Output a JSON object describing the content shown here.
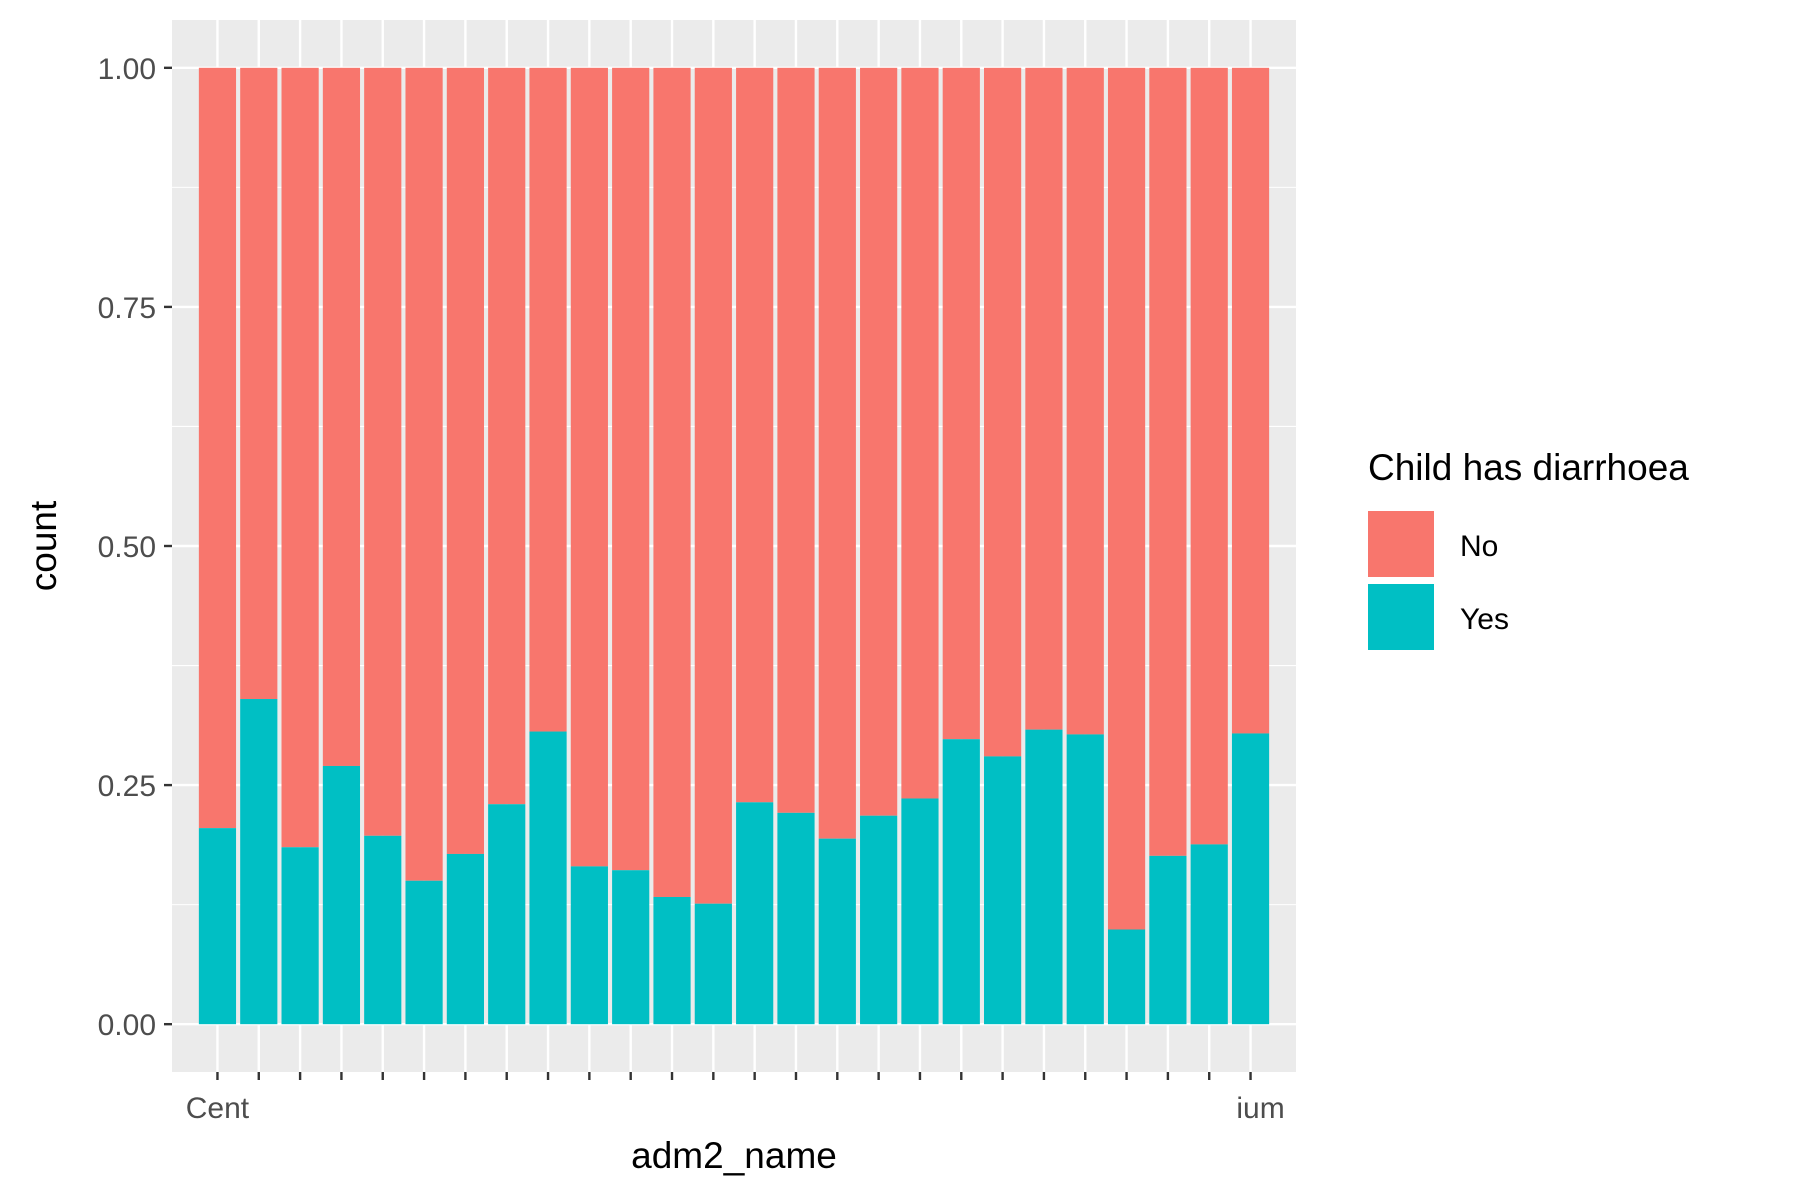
{
  "chart_data": {
    "type": "bar",
    "stacked": true,
    "position": "fill",
    "xlabel": "adm2_name",
    "ylabel": "count",
    "ylim": [
      0,
      1
    ],
    "y_ticks": [
      "0.00",
      "0.25",
      "0.50",
      "0.75",
      "1.00"
    ],
    "y_tick_values": [
      0,
      0.25,
      0.5,
      0.75,
      1.0
    ],
    "grid": true,
    "x_tick_labels_printed": [
      "Cent",
      "ium"
    ],
    "categories": [
      "1",
      "2",
      "3",
      "4",
      "5",
      "6",
      "7",
      "8",
      "9",
      "10",
      "11",
      "12",
      "13",
      "14",
      "15",
      "16",
      "17",
      "18",
      "19",
      "20",
      "21",
      "22",
      "23",
      "24",
      "25",
      "26"
    ],
    "legend": {
      "title": "Child has diarrhoea",
      "position": "right",
      "entries": [
        {
          "label": "No",
          "color": "#F8766D"
        },
        {
          "label": "Yes",
          "color": "#00BFC4"
        }
      ]
    },
    "series": [
      {
        "name": "Yes",
        "color": "#00BFC4",
        "values": [
          0.205,
          0.34,
          0.185,
          0.27,
          0.197,
          0.15,
          0.178,
          0.23,
          0.306,
          0.165,
          0.161,
          0.133,
          0.126,
          0.232,
          0.221,
          0.194,
          0.218,
          0.236,
          0.298,
          0.28,
          0.308,
          0.303,
          0.099,
          0.176,
          0.188,
          0.304
        ]
      },
      {
        "name": "No",
        "color": "#F8766D",
        "values": [
          0.795,
          0.66,
          0.815,
          0.73,
          0.803,
          0.85,
          0.822,
          0.77,
          0.694,
          0.835,
          0.839,
          0.867,
          0.874,
          0.768,
          0.779,
          0.806,
          0.782,
          0.764,
          0.702,
          0.72,
          0.692,
          0.697,
          0.901,
          0.824,
          0.812,
          0.696
        ]
      }
    ]
  }
}
